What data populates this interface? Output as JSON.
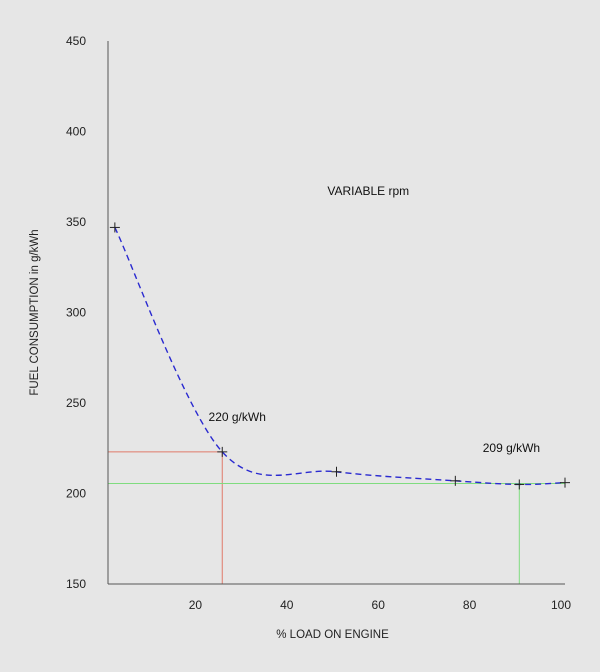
{
  "chart_data": {
    "type": "line",
    "title": "",
    "xlabel": "% LOAD ON ENGINE",
    "ylabel": "FUEL CONSUMPTION  in g/kWh",
    "xlim": [
      0,
      100
    ],
    "ylim": [
      150,
      450
    ],
    "x_ticks": [
      20,
      40,
      60,
      80,
      100
    ],
    "y_ticks": [
      150,
      200,
      250,
      300,
      350,
      400,
      450
    ],
    "grid": false,
    "series": [
      {
        "name": "",
        "style": "dashed",
        "color": "#2a2ad0",
        "x": [
          1.5,
          25,
          50,
          76,
          90,
          100
        ],
        "y": [
          347,
          223,
          212,
          207,
          205,
          206
        ]
      }
    ],
    "reference_lines": [
      {
        "label": "220 g/kWh",
        "x": 25,
        "y": 223,
        "color": "#e07a6a"
      },
      {
        "label": "209 g/kWh",
        "x": 90,
        "y": 205.5,
        "color": "#7fdc7f"
      }
    ],
    "annotations": [
      {
        "text": "VARIABLE  rpm",
        "x": 48,
        "y": 365
      },
      {
        "text": "220 g/kWh",
        "x": 22,
        "y": 240
      },
      {
        "text": "209 g/kWh",
        "x": 82,
        "y": 223
      }
    ]
  }
}
